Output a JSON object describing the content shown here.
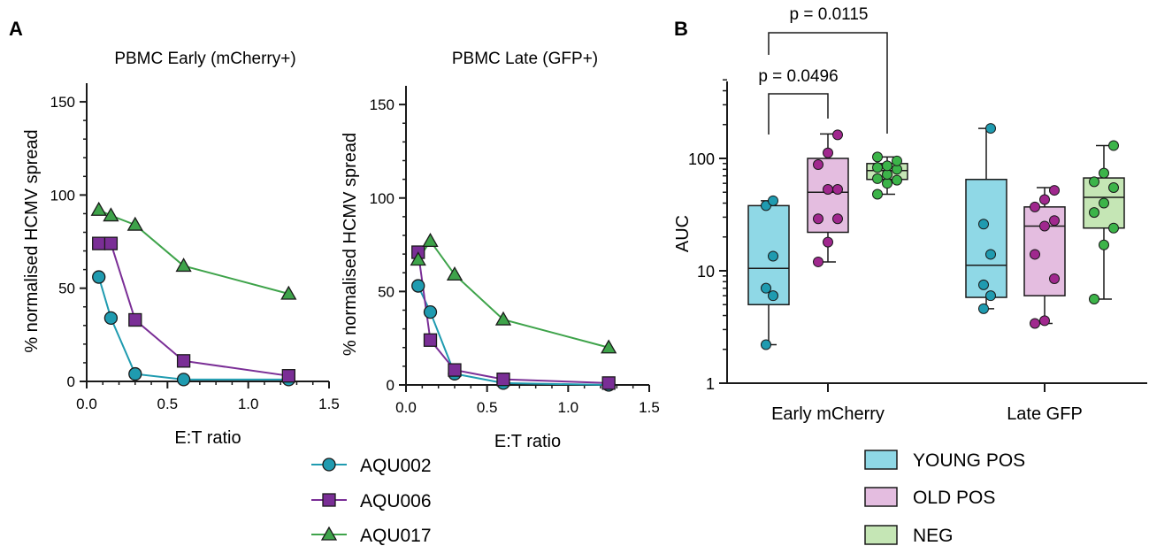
{
  "chart_data": [
    {
      "panel": "A",
      "type": "line",
      "title": "PBMC Early (mCherry+)",
      "xlabel": "E:T ratio",
      "ylabel": "% normalised HCMV spread",
      "xlim": [
        0,
        1.5
      ],
      "ylim": [
        0,
        160
      ],
      "xticks": [
        "0.0",
        "0.5",
        "1.0",
        "1.5"
      ],
      "yticks": [
        "0",
        "50",
        "100",
        "150"
      ],
      "series": [
        {
          "name": "AQU002",
          "marker": "circle",
          "color": "#1f9bb0",
          "x": [
            0.075,
            0.15,
            0.3,
            0.6,
            1.25
          ],
          "y": [
            56,
            34,
            4,
            1,
            1
          ]
        },
        {
          "name": "AQU006",
          "marker": "square",
          "color": "#7a2e96",
          "x": [
            0.075,
            0.15,
            0.3,
            0.6,
            1.25
          ],
          "y": [
            74,
            74,
            33,
            11,
            3
          ]
        },
        {
          "name": "AQU017",
          "marker": "triangle",
          "color": "#3ea34a",
          "x": [
            0.075,
            0.15,
            0.3,
            0.6,
            1.25
          ],
          "y": [
            92,
            89,
            84,
            62,
            47
          ]
        }
      ]
    },
    {
      "type": "line",
      "title": "PBMC Late (GFP+)",
      "xlabel": "E:T ratio",
      "ylabel": "% normalised HCMV spread",
      "xlim": [
        0,
        1.5
      ],
      "ylim": [
        0,
        160
      ],
      "xticks": [
        "0.0",
        "0.5",
        "1.0",
        "1.5"
      ],
      "yticks": [
        "0",
        "50",
        "100",
        "150"
      ],
      "series": [
        {
          "name": "AQU002",
          "marker": "circle",
          "color": "#1f9bb0",
          "x": [
            0.075,
            0.15,
            0.3,
            0.6,
            1.25
          ],
          "y": [
            53,
            39,
            6,
            1,
            0
          ]
        },
        {
          "name": "AQU006",
          "marker": "square",
          "color": "#7a2e96",
          "x": [
            0.075,
            0.15,
            0.3,
            0.6,
            1.25
          ],
          "y": [
            71,
            24,
            8,
            3,
            1
          ]
        },
        {
          "name": "AQU017",
          "marker": "triangle",
          "color": "#3ea34a",
          "x": [
            0.075,
            0.15,
            0.3,
            0.6,
            1.25
          ],
          "y": [
            67,
            77,
            59,
            35,
            20
          ]
        }
      ]
    },
    {
      "panel": "B",
      "type": "box",
      "ylabel": "AUC",
      "yscale": "log",
      "ylim": [
        1,
        500
      ],
      "yticks": [
        "1",
        "10",
        "100"
      ],
      "categories": [
        "Early mCherry",
        "Late GFP"
      ],
      "groups": [
        {
          "name": "YOUNG POS",
          "fill": "#8fd8e6",
          "point": "#1f9bb0"
        },
        {
          "name": "OLD POS",
          "fill": "#e4bde0",
          "point": "#a0288e"
        },
        {
          "name": "NEG",
          "fill": "#c5e6b5",
          "point": "#3cb449"
        }
      ],
      "boxes": [
        {
          "category": "Early mCherry",
          "group": "YOUNG POS",
          "min": 2.2,
          "q1": 5,
          "median": 10.5,
          "q3": 38,
          "max": 42,
          "points": [
            2.2,
            6,
            7,
            13.5,
            38,
            42
          ]
        },
        {
          "category": "Early mCherry",
          "group": "OLD POS",
          "min": 12,
          "q1": 22,
          "median": 50,
          "q3": 100,
          "max": 165,
          "points": [
            12,
            18,
            29,
            29,
            53,
            53,
            88,
            112,
            162
          ]
        },
        {
          "category": "Early mCherry",
          "group": "NEG",
          "min": 48,
          "q1": 65,
          "median": 78,
          "q3": 90,
          "max": 103,
          "points": [
            48,
            60,
            64,
            66,
            72,
            80,
            83,
            86,
            95,
            103
          ]
        },
        {
          "category": "Late GFP",
          "group": "YOUNG POS",
          "min": 4.6,
          "q1": 5.8,
          "median": 11.2,
          "q3": 65,
          "max": 185,
          "points": [
            4.6,
            6,
            7.5,
            14,
            26,
            185
          ]
        },
        {
          "category": "Late GFP",
          "group": "OLD POS",
          "min": 3.4,
          "q1": 6,
          "median": 25,
          "q3": 37,
          "max": 55,
          "points": [
            3.4,
            3.6,
            8.5,
            14,
            25,
            28,
            37,
            43,
            52
          ]
        },
        {
          "category": "Late GFP",
          "group": "NEG",
          "min": 5.6,
          "q1": 24,
          "median": 45,
          "q3": 67,
          "max": 130,
          "points": [
            5.6,
            17,
            24,
            33,
            40,
            55,
            62,
            74,
            130
          ]
        }
      ],
      "annotations": [
        {
          "text": "p = 0.0496",
          "from": "YOUNG POS",
          "to": "OLD POS",
          "category": "Early mCherry"
        },
        {
          "text": "p = 0.0115",
          "from": "YOUNG POS",
          "to": "NEG",
          "category": "Early mCherry"
        }
      ]
    }
  ],
  "panel_labels": {
    "a": "A",
    "b": "B"
  }
}
